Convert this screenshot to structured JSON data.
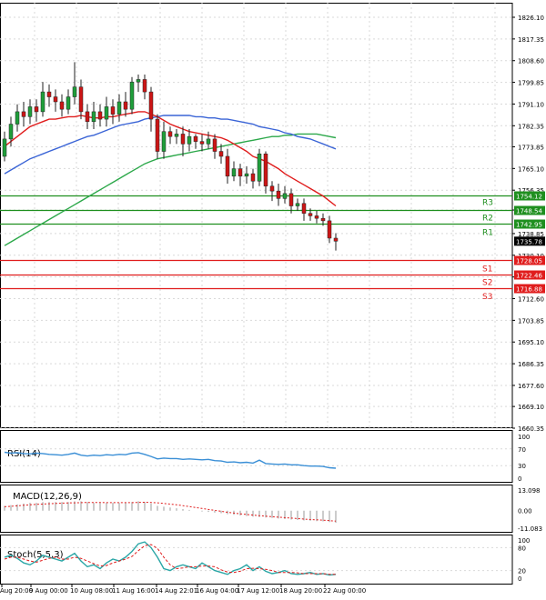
{
  "chart_data": {
    "type": "candlestick",
    "main": {
      "y_ticks": [
        "1826.10",
        "1817.35",
        "1808.60",
        "1799.85",
        "1791.10",
        "1782.35",
        "1773.85",
        "1765.10",
        "1756.35",
        "1748.34",
        "1738.85",
        "1730.10",
        "1721.35",
        "1712.60",
        "1703.85",
        "1695.10",
        "1686.35",
        "1677.60",
        "1669.10",
        "1660.35"
      ],
      "ylim": [
        1660.35,
        1826.1
      ],
      "candles": [
        [
          1770,
          1777,
          1768,
          1780
        ],
        [
          1777,
          1783,
          1774,
          1786
        ],
        [
          1783,
          1788,
          1780,
          1791
        ],
        [
          1788,
          1786,
          1782,
          1792
        ],
        [
          1786,
          1790,
          1783,
          1793
        ],
        [
          1790,
          1788,
          1784,
          1793
        ],
        [
          1788,
          1796,
          1786,
          1800
        ],
        [
          1796,
          1794,
          1790,
          1799
        ],
        [
          1794,
          1792,
          1788,
          1797
        ],
        [
          1792,
          1789,
          1786,
          1795
        ],
        [
          1789,
          1794,
          1787,
          1797
        ],
        [
          1794,
          1798,
          1791,
          1808
        ],
        [
          1798,
          1788,
          1785,
          1801
        ],
        [
          1788,
          1784,
          1781,
          1791
        ],
        [
          1784,
          1788,
          1781,
          1792
        ],
        [
          1788,
          1785,
          1782,
          1791
        ],
        [
          1785,
          1790,
          1782,
          1794
        ],
        [
          1790,
          1787,
          1783,
          1793
        ],
        [
          1787,
          1792,
          1784,
          1795
        ],
        [
          1792,
          1789,
          1786,
          1796
        ],
        [
          1789,
          1800,
          1787,
          1802
        ],
        [
          1800,
          1801,
          1796,
          1803
        ],
        [
          1801,
          1796,
          1793,
          1803
        ],
        [
          1796,
          1785,
          1780,
          1798
        ],
        [
          1785,
          1772,
          1769,
          1787
        ],
        [
          1772,
          1780,
          1769,
          1784
        ],
        [
          1780,
          1778,
          1775,
          1782
        ],
        [
          1778,
          1779,
          1775,
          1781
        ],
        [
          1779,
          1775,
          1770,
          1782
        ],
        [
          1775,
          1778,
          1772,
          1781
        ],
        [
          1778,
          1776,
          1773,
          1779
        ],
        [
          1776,
          1775,
          1772,
          1779
        ],
        [
          1775,
          1777,
          1773,
          1780
        ],
        [
          1777,
          1772,
          1769,
          1779
        ],
        [
          1772,
          1770,
          1767,
          1775
        ],
        [
          1770,
          1762,
          1759,
          1773
        ],
        [
          1762,
          1765,
          1760,
          1768
        ],
        [
          1765,
          1762,
          1758,
          1767
        ],
        [
          1762,
          1763,
          1759,
          1766
        ],
        [
          1763,
          1760,
          1757,
          1765
        ],
        [
          1760,
          1771,
          1758,
          1773
        ],
        [
          1771,
          1758,
          1755,
          1772
        ],
        [
          1758,
          1756,
          1752,
          1760
        ],
        [
          1756,
          1753,
          1750,
          1759
        ],
        [
          1753,
          1755,
          1751,
          1758
        ],
        [
          1755,
          1750,
          1747,
          1757
        ],
        [
          1750,
          1751,
          1748,
          1753
        ],
        [
          1751,
          1747,
          1744,
          1753
        ],
        [
          1747,
          1746,
          1744,
          1749
        ],
        [
          1746,
          1745,
          1743,
          1748
        ],
        [
          1745,
          1744,
          1742,
          1747
        ],
        [
          1744,
          1737,
          1735,
          1746
        ],
        [
          1737,
          1735.78,
          1732,
          1739
        ]
      ],
      "ma_red": [
        1774,
        1776,
        1778,
        1780,
        1782,
        1783,
        1784,
        1785,
        1785,
        1785.5,
        1786,
        1786,
        1786.5,
        1786,
        1785.5,
        1785.5,
        1786,
        1786,
        1786.5,
        1787,
        1787.5,
        1788,
        1788,
        1787,
        1786,
        1784.5,
        1783,
        1782,
        1781,
        1780,
        1779.5,
        1779,
        1778.5,
        1778,
        1777.5,
        1776.5,
        1775,
        1773.5,
        1772,
        1770,
        1769,
        1768,
        1766.5,
        1765,
        1763,
        1761.5,
        1760,
        1758.5,
        1757,
        1755.5,
        1754,
        1752,
        1750
      ],
      "ma_blue": [
        1763,
        1764.5,
        1766,
        1767.5,
        1769,
        1770,
        1771,
        1772,
        1773,
        1774,
        1775,
        1776,
        1777,
        1778,
        1778.5,
        1779.5,
        1780.5,
        1781.5,
        1782.5,
        1783,
        1783.5,
        1784,
        1785,
        1785.5,
        1786,
        1786.5,
        1786.5,
        1786.5,
        1786.5,
        1786.5,
        1786,
        1786,
        1785.5,
        1785.5,
        1785,
        1785,
        1784.5,
        1784,
        1783.5,
        1783,
        1782,
        1781.5,
        1781,
        1780.5,
        1779.5,
        1779,
        1778,
        1777.5,
        1777,
        1776,
        1775,
        1774,
        1773
      ],
      "ma_green": [
        1734,
        1735.5,
        1737,
        1738.5,
        1740,
        1741.5,
        1743,
        1744.5,
        1746,
        1747.5,
        1749,
        1750.5,
        1752,
        1753.5,
        1755,
        1756.5,
        1758,
        1759.5,
        1761,
        1762.5,
        1764,
        1765.5,
        1767,
        1768,
        1769,
        1769.5,
        1770,
        1770.5,
        1771,
        1771.5,
        1772,
        1772.5,
        1773,
        1773.5,
        1774,
        1774.5,
        1775,
        1775.5,
        1776,
        1776.5,
        1777,
        1777.5,
        1778,
        1778,
        1778.5,
        1778.5,
        1779,
        1779,
        1779,
        1779,
        1778.5,
        1778,
        1777.5
      ],
      "levels": [
        {
          "name": "R3",
          "value": 1754.12,
          "label": "1754.12",
          "color": "#1f8f1f"
        },
        {
          "name": "",
          "value": 1748.54,
          "label": "1748.54",
          "color": "#1f8f1f"
        },
        {
          "name": "R2",
          "value": 1742.95,
          "label": "1742.95",
          "color": "#1f8f1f"
        },
        {
          "name": "R1",
          "value": 1742.95,
          "label": "",
          "color": "#1f8f1f"
        },
        {
          "name": "",
          "value": 1728.05,
          "label": "1728.05",
          "color": "#e01c1c"
        },
        {
          "name": "S1",
          "value": 1722.46,
          "label": "1722.46",
          "color": "#e01c1c"
        },
        {
          "name": "S2",
          "value": 1716.88,
          "label": "1716.88",
          "color": "#e01c1c"
        },
        {
          "name": "S3",
          "value": 1716.88,
          "label": "",
          "color": "#e01c1c"
        }
      ],
      "current_price": "1735.78",
      "colors": {
        "bull": "#1f9e3a",
        "bear": "#cc1515",
        "ma_red": "#e01c1c",
        "ma_blue": "#3a64d6",
        "ma_green": "#2ca84a"
      }
    },
    "x_labels": [
      "Aug 20:00",
      "9 Aug 00:00",
      "10 Aug 08:00",
      "11 Aug 16:00",
      "14 Aug 22:01",
      "16 Aug 04:00",
      "17 Aug 12:00",
      "18 Aug 20:00",
      "22 Aug 00:00"
    ],
    "rsi": {
      "title": "RSI(14)",
      "ticks": [
        "100",
        "70",
        "30",
        "0"
      ],
      "ylim": [
        0,
        100
      ],
      "values": [
        62,
        60,
        61,
        59,
        58,
        60,
        59,
        57,
        56,
        55,
        57,
        60,
        55,
        53,
        55,
        54,
        56,
        55,
        57,
        56,
        60,
        61,
        57,
        52,
        46,
        48,
        47,
        47,
        45,
        46,
        45,
        44,
        45,
        42,
        41,
        38,
        39,
        37,
        38,
        36,
        43,
        35,
        34,
        33,
        34,
        32,
        32,
        30,
        29,
        29,
        28,
        25,
        24
      ]
    },
    "macd": {
      "title": "MACD(12,26,9)",
      "ticks": [
        "13.098",
        "0.00",
        "-11.083"
      ],
      "ylim": [
        -11.083,
        13.098
      ],
      "hist": [
        3,
        3.5,
        4,
        4.5,
        5,
        5,
        5.5,
        5.5,
        5.5,
        5.5,
        5.5,
        6,
        6,
        5.5,
        5,
        5,
        5,
        5,
        5,
        5,
        5.5,
        6,
        5.5,
        4.5,
        3,
        2.5,
        2,
        1.5,
        1,
        0.5,
        0,
        -0.5,
        -0.8,
        -1.2,
        -1.6,
        -2.2,
        -2.6,
        -3,
        -3.4,
        -3.8,
        -4,
        -4.3,
        -4.6,
        -5,
        -5.3,
        -5.6,
        -5.9,
        -6.2,
        -6.4,
        -6.6,
        -6.8,
        -7.2,
        -7.6
      ],
      "signal": [
        2.5,
        2.8,
        3.1,
        3.4,
        3.7,
        4,
        4.2,
        4.4,
        4.6,
        4.8,
        4.9,
        5,
        5.1,
        5.2,
        5.2,
        5.2,
        5.1,
        5.1,
        5.1,
        5.1,
        5.1,
        5.2,
        5.3,
        5.2,
        5,
        4.6,
        4.2,
        3.7,
        3.2,
        2.6,
        2,
        1.4,
        0.8,
        0.2,
        -0.4,
        -1,
        -1.5,
        -2,
        -2.4,
        -2.8,
        -3.2,
        -3.5,
        -3.8,
        -4.1,
        -4.4,
        -4.7,
        -5,
        -5.3,
        -5.6,
        -5.8,
        -6,
        -6.3,
        -6.6
      ]
    },
    "stoch": {
      "title": "Stoch(5,5,3)",
      "ticks": [
        "100",
        "80",
        "20",
        "0"
      ],
      "ylim": [
        0,
        100
      ],
      "k": [
        55,
        60,
        52,
        40,
        35,
        45,
        60,
        55,
        50,
        45,
        55,
        65,
        45,
        30,
        35,
        25,
        40,
        50,
        45,
        55,
        70,
        90,
        95,
        80,
        55,
        25,
        20,
        30,
        35,
        30,
        25,
        40,
        30,
        20,
        15,
        10,
        20,
        25,
        35,
        20,
        30,
        18,
        12,
        15,
        20,
        12,
        10,
        12,
        15,
        10,
        12,
        8,
        10
      ],
      "d": [
        50,
        55,
        55,
        50,
        45,
        42,
        47,
        52,
        55,
        50,
        50,
        55,
        52,
        45,
        38,
        32,
        33,
        40,
        45,
        50,
        57,
        72,
        85,
        88,
        78,
        55,
        35,
        25,
        27,
        30,
        30,
        32,
        32,
        30,
        22,
        16,
        15,
        18,
        25,
        26,
        25,
        23,
        20,
        15,
        15,
        15,
        14,
        12,
        12,
        12,
        12,
        10,
        10
      ]
    }
  }
}
